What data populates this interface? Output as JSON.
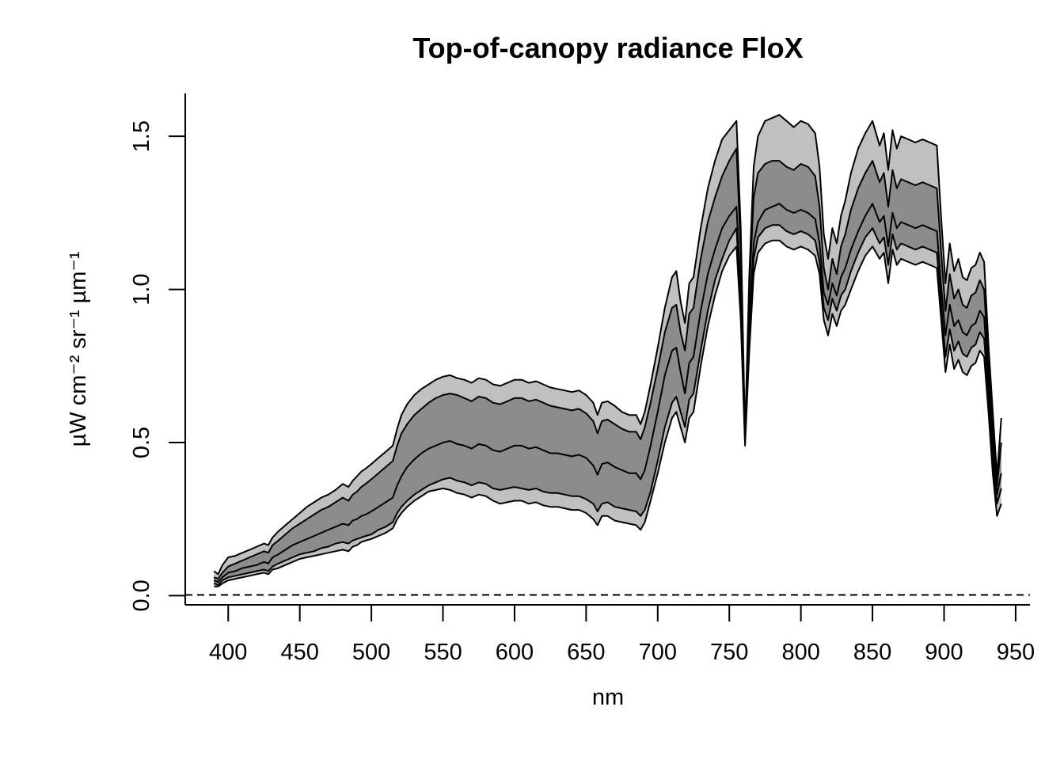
{
  "chart_data": {
    "type": "area",
    "title": "Top-of-canopy radiance FloX",
    "xlabel": "nm",
    "ylabel": "µW cm⁻² sr⁻¹ µm⁻¹",
    "xlim": [
      370,
      960
    ],
    "ylim": [
      -0.03,
      1.64
    ],
    "xticks": [
      400,
      450,
      500,
      550,
      600,
      650,
      700,
      750,
      800,
      850,
      900,
      950
    ],
    "yticks": [
      0.0,
      0.5,
      1.0,
      1.5
    ],
    "ytick_labels": [
      "0.0",
      "0.5",
      "1.0",
      "1.5"
    ],
    "grid": false,
    "reference_line": {
      "y": 0.0,
      "style": "dashed"
    },
    "band_colors": {
      "outer": "#c0c0c0",
      "inner": "#8c8c8c",
      "line": "#000000"
    },
    "x": [
      390,
      393,
      396,
      400,
      405,
      410,
      415,
      420,
      425,
      428,
      431,
      435,
      440,
      445,
      450,
      455,
      460,
      465,
      470,
      475,
      480,
      484,
      487,
      490,
      493,
      496,
      500,
      505,
      510,
      515,
      518,
      521,
      525,
      530,
      535,
      540,
      545,
      550,
      555,
      560,
      565,
      570,
      575,
      580,
      585,
      590,
      595,
      600,
      605,
      610,
      615,
      620,
      625,
      630,
      635,
      640,
      645,
      650,
      655,
      658,
      661,
      665,
      670,
      675,
      680,
      685,
      688,
      691,
      695,
      700,
      705,
      710,
      713,
      716,
      719,
      722,
      725,
      730,
      735,
      740,
      745,
      750,
      755,
      758,
      761,
      764,
      767,
      770,
      775,
      780,
      785,
      790,
      795,
      800,
      805,
      810,
      813,
      816,
      819,
      822,
      825,
      828,
      831,
      835,
      840,
      845,
      850,
      855,
      858,
      861,
      864,
      867,
      870,
      875,
      880,
      885,
      890,
      895,
      898,
      901,
      904,
      907,
      910,
      913,
      916,
      919,
      922,
      925,
      928,
      931,
      934,
      937,
      940
    ],
    "series": [
      {
        "name": "",
        "values": [
          0.03,
          0.03,
          0.04,
          0.05,
          0.055,
          0.06,
          0.065,
          0.07,
          0.075,
          0.07,
          0.085,
          0.09,
          0.1,
          0.11,
          0.12,
          0.125,
          0.13,
          0.135,
          0.14,
          0.145,
          0.15,
          0.145,
          0.16,
          0.165,
          0.175,
          0.18,
          0.185,
          0.195,
          0.205,
          0.22,
          0.25,
          0.27,
          0.29,
          0.31,
          0.325,
          0.34,
          0.345,
          0.35,
          0.345,
          0.335,
          0.33,
          0.32,
          0.33,
          0.325,
          0.31,
          0.3,
          0.305,
          0.31,
          0.31,
          0.3,
          0.305,
          0.295,
          0.29,
          0.29,
          0.285,
          0.28,
          0.28,
          0.27,
          0.25,
          0.23,
          0.26,
          0.26,
          0.245,
          0.24,
          0.235,
          0.23,
          0.215,
          0.24,
          0.31,
          0.4,
          0.5,
          0.58,
          0.6,
          0.55,
          0.5,
          0.58,
          0.6,
          0.75,
          0.88,
          0.98,
          1.06,
          1.11,
          1.14,
          0.9,
          0.49,
          0.8,
          1.05,
          1.12,
          1.15,
          1.16,
          1.16,
          1.14,
          1.13,
          1.14,
          1.13,
          1.11,
          1.05,
          0.9,
          0.85,
          0.92,
          0.88,
          0.93,
          0.95,
          1.0,
          1.06,
          1.11,
          1.14,
          1.1,
          1.12,
          1.02,
          1.13,
          1.08,
          1.1,
          1.09,
          1.08,
          1.09,
          1.08,
          1.07,
          0.9,
          0.73,
          0.82,
          0.74,
          0.77,
          0.73,
          0.72,
          0.75,
          0.76,
          0.8,
          0.78,
          0.6,
          0.4,
          0.26,
          0.3
        ]
      },
      {
        "name": "",
        "values": [
          0.04,
          0.035,
          0.05,
          0.06,
          0.065,
          0.07,
          0.075,
          0.08,
          0.085,
          0.08,
          0.095,
          0.105,
          0.115,
          0.125,
          0.135,
          0.14,
          0.145,
          0.155,
          0.16,
          0.17,
          0.175,
          0.17,
          0.18,
          0.185,
          0.19,
          0.195,
          0.2,
          0.215,
          0.225,
          0.24,
          0.27,
          0.29,
          0.31,
          0.33,
          0.345,
          0.36,
          0.37,
          0.38,
          0.385,
          0.375,
          0.37,
          0.36,
          0.37,
          0.365,
          0.35,
          0.345,
          0.35,
          0.355,
          0.35,
          0.345,
          0.35,
          0.34,
          0.335,
          0.335,
          0.33,
          0.325,
          0.325,
          0.315,
          0.3,
          0.275,
          0.3,
          0.305,
          0.29,
          0.285,
          0.28,
          0.275,
          0.26,
          0.28,
          0.34,
          0.44,
          0.55,
          0.63,
          0.65,
          0.6,
          0.55,
          0.64,
          0.66,
          0.8,
          0.93,
          1.03,
          1.1,
          1.16,
          1.2,
          0.95,
          0.55,
          0.85,
          1.1,
          1.17,
          1.2,
          1.21,
          1.21,
          1.19,
          1.18,
          1.19,
          1.18,
          1.16,
          1.09,
          0.94,
          0.9,
          0.97,
          0.93,
          0.98,
          1.0,
          1.06,
          1.12,
          1.17,
          1.2,
          1.15,
          1.17,
          1.08,
          1.18,
          1.13,
          1.15,
          1.14,
          1.13,
          1.14,
          1.13,
          1.12,
          0.95,
          0.78,
          0.87,
          0.8,
          0.83,
          0.79,
          0.78,
          0.81,
          0.82,
          0.86,
          0.84,
          0.65,
          0.45,
          0.3,
          0.35
        ]
      },
      {
        "name": "",
        "values": [
          0.05,
          0.045,
          0.06,
          0.075,
          0.08,
          0.09,
          0.095,
          0.1,
          0.11,
          0.105,
          0.125,
          0.135,
          0.15,
          0.165,
          0.175,
          0.185,
          0.195,
          0.205,
          0.215,
          0.225,
          0.235,
          0.23,
          0.245,
          0.25,
          0.26,
          0.265,
          0.275,
          0.29,
          0.305,
          0.32,
          0.36,
          0.39,
          0.42,
          0.445,
          0.465,
          0.48,
          0.49,
          0.5,
          0.505,
          0.495,
          0.49,
          0.48,
          0.495,
          0.49,
          0.475,
          0.47,
          0.48,
          0.49,
          0.49,
          0.48,
          0.485,
          0.475,
          0.465,
          0.465,
          0.46,
          0.455,
          0.46,
          0.45,
          0.425,
          0.395,
          0.43,
          0.435,
          0.42,
          0.41,
          0.4,
          0.4,
          0.38,
          0.41,
          0.49,
          0.6,
          0.72,
          0.8,
          0.81,
          0.73,
          0.66,
          0.76,
          0.78,
          0.93,
          1.05,
          1.13,
          1.2,
          1.24,
          1.27,
          1.0,
          0.5,
          0.9,
          1.15,
          1.22,
          1.26,
          1.27,
          1.28,
          1.26,
          1.25,
          1.26,
          1.25,
          1.23,
          1.15,
          0.99,
          0.95,
          1.02,
          0.98,
          1.04,
          1.07,
          1.13,
          1.19,
          1.24,
          1.28,
          1.22,
          1.24,
          1.14,
          1.25,
          1.2,
          1.22,
          1.21,
          1.2,
          1.21,
          1.2,
          1.19,
          1.01,
          0.85,
          0.95,
          0.88,
          0.9,
          0.86,
          0.85,
          0.88,
          0.89,
          0.93,
          0.91,
          0.7,
          0.5,
          0.33,
          0.4
        ]
      },
      {
        "name": "",
        "values": [
          0.06,
          0.055,
          0.075,
          0.095,
          0.105,
          0.115,
          0.125,
          0.135,
          0.145,
          0.14,
          0.165,
          0.18,
          0.2,
          0.22,
          0.235,
          0.25,
          0.265,
          0.28,
          0.29,
          0.305,
          0.32,
          0.31,
          0.33,
          0.34,
          0.355,
          0.365,
          0.38,
          0.4,
          0.42,
          0.44,
          0.49,
          0.53,
          0.56,
          0.59,
          0.61,
          0.63,
          0.645,
          0.655,
          0.66,
          0.655,
          0.645,
          0.635,
          0.65,
          0.645,
          0.63,
          0.625,
          0.635,
          0.645,
          0.645,
          0.635,
          0.64,
          0.63,
          0.62,
          0.615,
          0.61,
          0.605,
          0.61,
          0.595,
          0.57,
          0.53,
          0.57,
          0.575,
          0.56,
          0.545,
          0.535,
          0.535,
          0.51,
          0.55,
          0.63,
          0.74,
          0.86,
          0.94,
          0.95,
          0.86,
          0.8,
          0.92,
          0.94,
          1.1,
          1.22,
          1.3,
          1.37,
          1.42,
          1.46,
          1.13,
          0.51,
          1.0,
          1.3,
          1.38,
          1.41,
          1.42,
          1.42,
          1.4,
          1.39,
          1.41,
          1.4,
          1.37,
          1.27,
          1.07,
          1.0,
          1.1,
          1.05,
          1.14,
          1.18,
          1.26,
          1.33,
          1.38,
          1.42,
          1.35,
          1.38,
          1.27,
          1.39,
          1.33,
          1.36,
          1.35,
          1.34,
          1.35,
          1.34,
          1.33,
          1.12,
          0.93,
          1.05,
          0.97,
          1.0,
          0.95,
          0.94,
          0.98,
          0.99,
          1.03,
          1.0,
          0.76,
          0.55,
          0.36,
          0.5
        ]
      },
      {
        "name": "",
        "values": [
          0.08,
          0.07,
          0.1,
          0.125,
          0.13,
          0.14,
          0.15,
          0.16,
          0.17,
          0.165,
          0.19,
          0.21,
          0.23,
          0.25,
          0.27,
          0.29,
          0.305,
          0.32,
          0.33,
          0.345,
          0.365,
          0.355,
          0.375,
          0.39,
          0.405,
          0.415,
          0.43,
          0.45,
          0.47,
          0.49,
          0.545,
          0.59,
          0.625,
          0.655,
          0.675,
          0.69,
          0.705,
          0.715,
          0.72,
          0.71,
          0.705,
          0.695,
          0.71,
          0.705,
          0.69,
          0.685,
          0.695,
          0.705,
          0.705,
          0.695,
          0.7,
          0.69,
          0.68,
          0.675,
          0.67,
          0.665,
          0.67,
          0.655,
          0.63,
          0.59,
          0.63,
          0.635,
          0.62,
          0.6,
          0.59,
          0.59,
          0.56,
          0.6,
          0.69,
          0.81,
          0.94,
          1.04,
          1.06,
          0.96,
          0.89,
          1.02,
          1.04,
          1.2,
          1.33,
          1.42,
          1.49,
          1.52,
          1.55,
          1.2,
          0.52,
          1.05,
          1.4,
          1.5,
          1.55,
          1.56,
          1.57,
          1.55,
          1.53,
          1.55,
          1.54,
          1.51,
          1.4,
          1.18,
          1.1,
          1.2,
          1.15,
          1.24,
          1.29,
          1.38,
          1.46,
          1.51,
          1.55,
          1.47,
          1.51,
          1.39,
          1.52,
          1.46,
          1.5,
          1.49,
          1.48,
          1.49,
          1.48,
          1.47,
          1.23,
          1.02,
          1.15,
          1.06,
          1.1,
          1.04,
          1.03,
          1.07,
          1.08,
          1.12,
          1.09,
          0.82,
          0.6,
          0.39,
          0.58
        ]
      }
    ]
  }
}
